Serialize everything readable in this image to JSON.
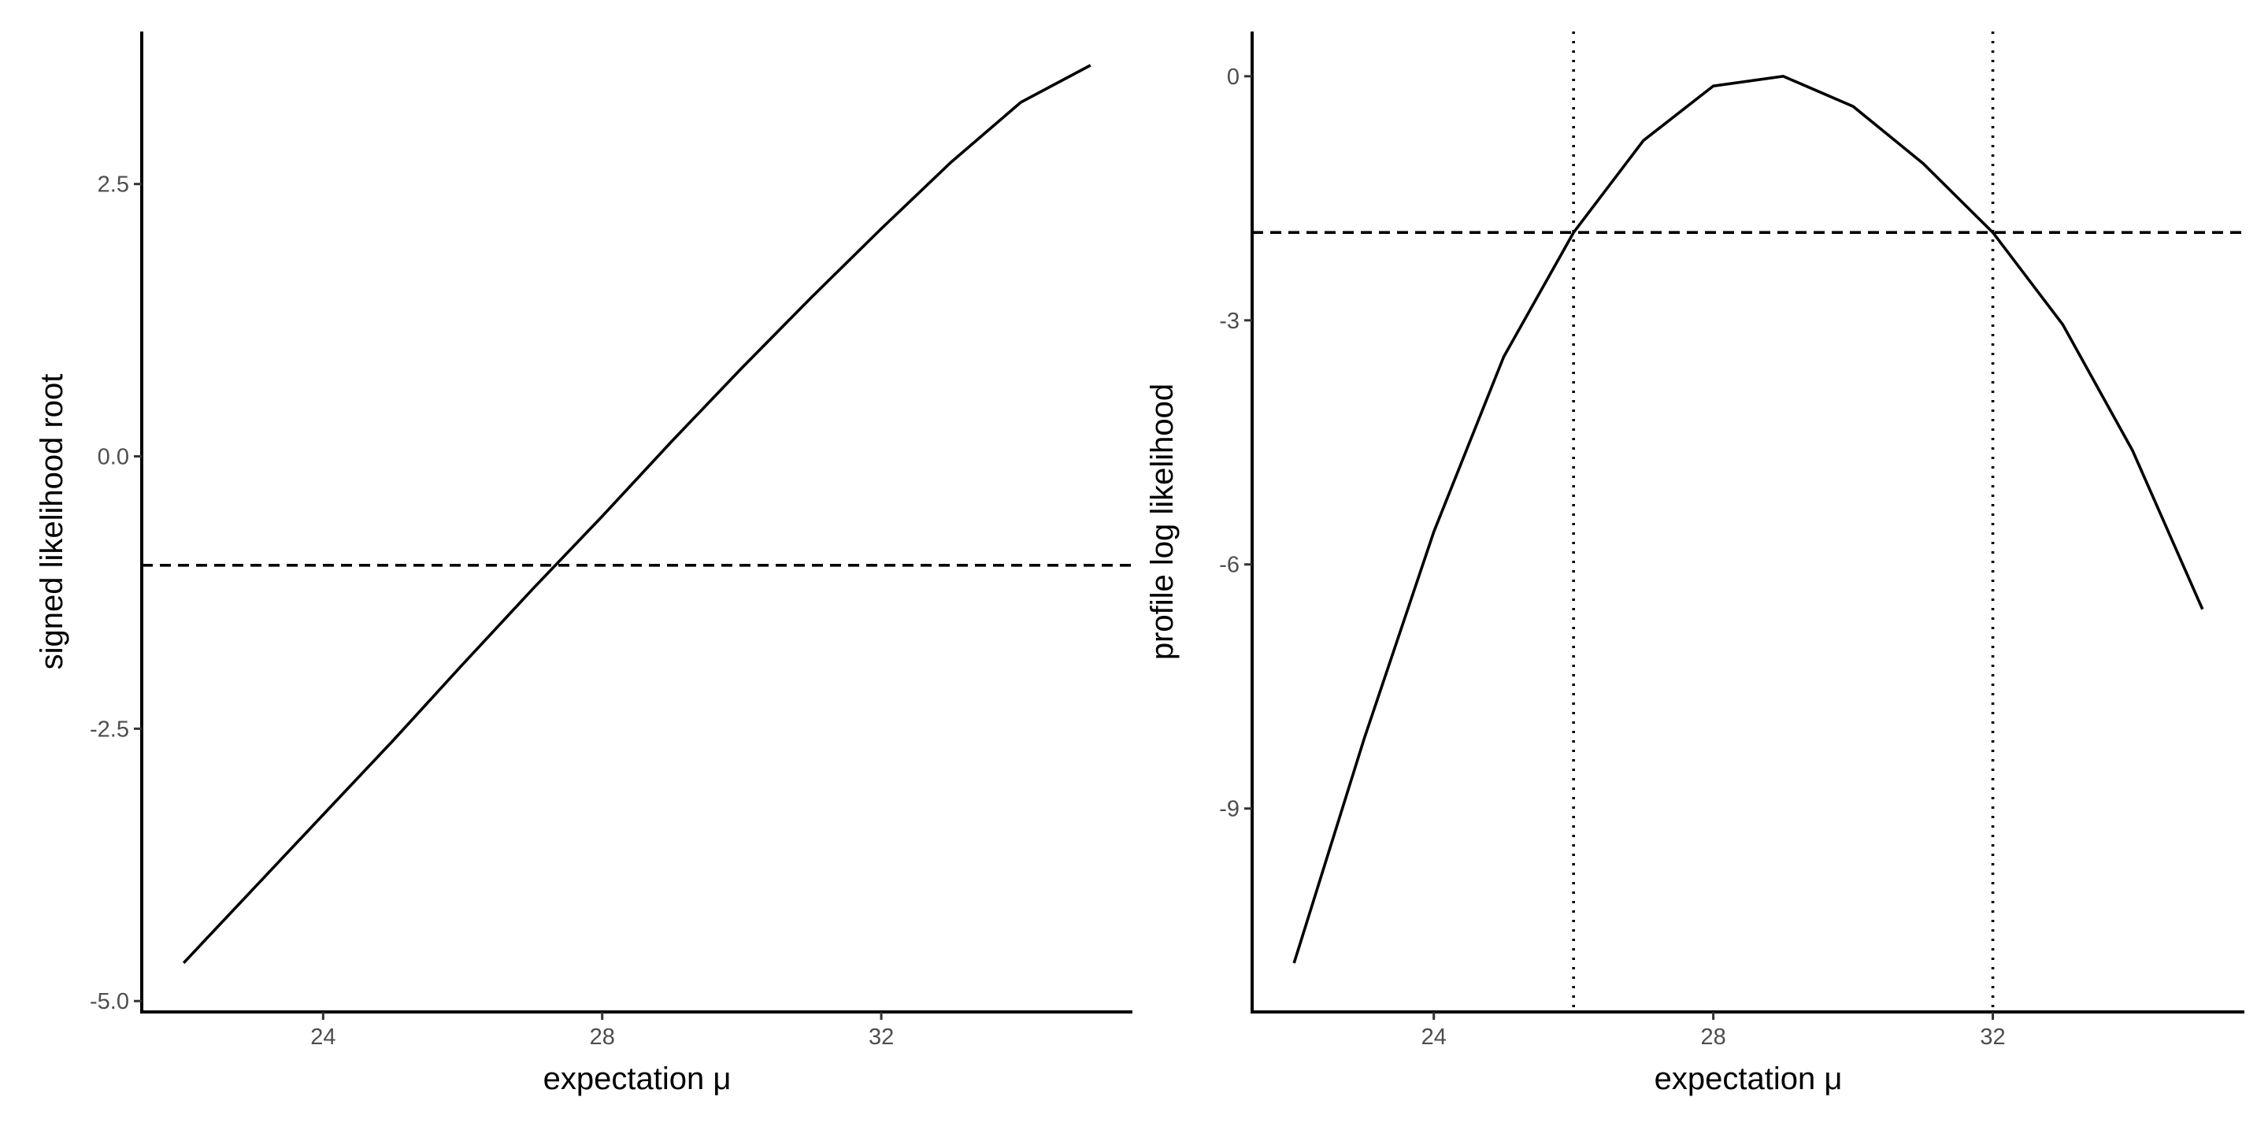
{
  "chart_data": [
    {
      "type": "line",
      "xlabel": "expectation μ",
      "ylabel": "signed likelihood root",
      "xlim": [
        21.4,
        35.6
      ],
      "ylim": [
        -5.1,
        3.9
      ],
      "xticks": [
        24,
        28,
        32
      ],
      "xtick_labels": [
        "24",
        "28",
        "32"
      ],
      "yticks": [
        -5.0,
        -2.5,
        0.0,
        2.5
      ],
      "ytick_labels": [
        "-5.0",
        "-2.5",
        "0.0",
        "2.5"
      ],
      "grid": false,
      "series": [
        {
          "x": [
            22,
            23,
            24,
            25,
            26,
            27,
            28,
            29,
            30,
            31,
            32,
            33,
            34,
            35
          ],
          "y": [
            -4.65,
            -3.97,
            -3.29,
            -2.61,
            -1.91,
            -1.22,
            -0.55,
            0.14,
            0.81,
            1.46,
            2.09,
            2.7,
            3.25,
            3.59
          ]
        }
      ],
      "hlines": [
        {
          "y": -1.0,
          "style": "dashed"
        }
      ],
      "vlines": []
    },
    {
      "type": "line",
      "xlabel": "expectation μ",
      "ylabel": "profile log likelihood",
      "xlim": [
        21.4,
        35.6
      ],
      "ylim": [
        -11.5,
        0.55
      ],
      "xticks": [
        24,
        28,
        32
      ],
      "xtick_labels": [
        "24",
        "28",
        "32"
      ],
      "yticks": [
        0,
        -3,
        -6,
        -9
      ],
      "ytick_labels": [
        "0",
        "-3",
        "-6",
        "-9"
      ],
      "grid": false,
      "series": [
        {
          "x": [
            22,
            23,
            24,
            25,
            26,
            27,
            28,
            29,
            30,
            31,
            32,
            33,
            34,
            35
          ],
          "y": [
            -10.9,
            -8.15,
            -5.6,
            -3.45,
            -1.92,
            -0.79,
            -0.12,
            0,
            -0.37,
            -1.07,
            -1.92,
            -3.05,
            -4.6,
            -6.55
          ]
        }
      ],
      "hlines": [
        {
          "y": -1.92,
          "style": "dashed"
        }
      ],
      "vlines": [
        {
          "x": 26.0,
          "style": "dotted"
        },
        {
          "x": 32.0,
          "style": "dotted"
        }
      ]
    }
  ]
}
